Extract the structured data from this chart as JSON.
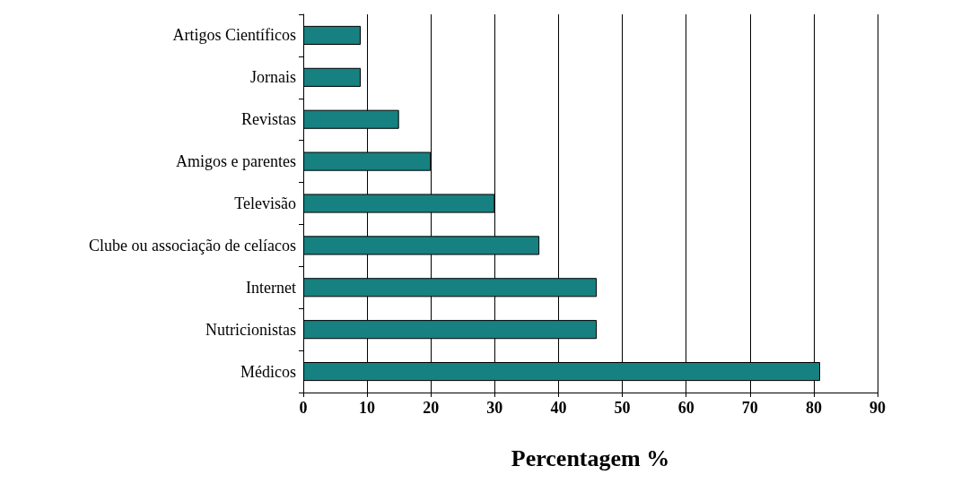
{
  "chart_data": {
    "type": "bar",
    "orientation": "horizontal",
    "xlabel": "Percentagem %",
    "categories": [
      "Artigos Científicos",
      "Jornais",
      "Revistas",
      "Amigos e parentes",
      "Televisão",
      "Clube ou associação de celíacos",
      "Internet",
      "Nutricionistas",
      "Médicos"
    ],
    "values": [
      9,
      9,
      15,
      20,
      30,
      37,
      46,
      46,
      81
    ],
    "color": "#178080",
    "xlim": [
      0,
      90
    ],
    "xticks": [
      0,
      10,
      20,
      30,
      40,
      50,
      60,
      70,
      80,
      90
    ],
    "grid": "x"
  }
}
